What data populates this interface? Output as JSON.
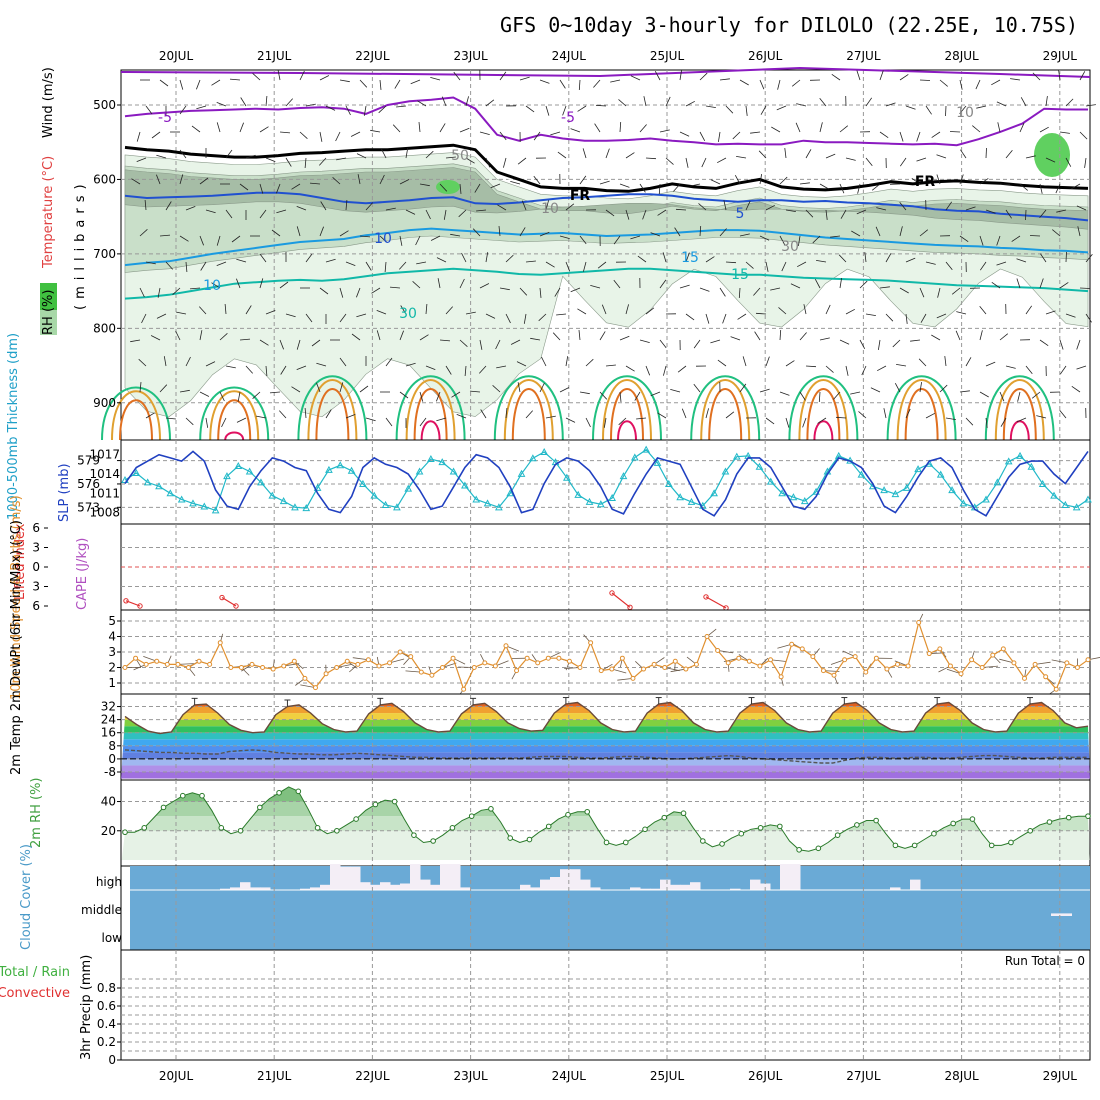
{
  "title": "GFS 0~10day 3-hourly for DILOLO (22.25E, 10.75S)",
  "run_total": "Run Total = 0",
  "colors": {
    "rh_light": "#e8f4e8",
    "rh_mid": "#c9dfc9",
    "rh_dark": "#a6bda6",
    "rh_green": "#60d060",
    "temp_purple": "#8a1ac0",
    "temp_blue": "#2050d0",
    "temp_lightblue": "#1a9ae0",
    "temp_teal": "#10b8a8",
    "temp_green": "#20c080",
    "temp_orange": "#e0a030",
    "temp_darkorange": "#e07020",
    "temp_red": "#e01060",
    "frz": "#000000",
    "thickness": "#20b8c8",
    "slp": "#2040c0",
    "lifted": "#e03030",
    "cape": "#b050c0",
    "wind": "#e09030",
    "rh2m": "#40a040",
    "cloud": "#6aaad6",
    "grid": "#999999"
  },
  "chart_data": [
    {
      "panel": "upper-air",
      "type": "contour",
      "ylabel_parts": [
        "RH (%)",
        "Temperature (°C)",
        "Wind (m/s)"
      ],
      "ylabel_units": "(millibars)",
      "y_ticks": [
        500,
        600,
        700,
        800,
        900
      ],
      "ylim": [
        450,
        950
      ],
      "date_labels": [
        "20JUL",
        "21JUL",
        "22JUL",
        "23JUL",
        "24JUL",
        "25JUL",
        "26JUL",
        "27JUL",
        "28JUL",
        "29JUL"
      ],
      "contour_labels": [
        "-5",
        "-5",
        "FR",
        "FR",
        "5",
        "10",
        "10",
        "15",
        "15",
        "30",
        "50",
        "10",
        "10",
        "30"
      ],
      "levels_c": [
        -5,
        0,
        5,
        10,
        15
      ],
      "isotherms_hpa": {
        "minus5": [
          515,
          512,
          510,
          508,
          507,
          506,
          505,
          506,
          504,
          503,
          505,
          512,
          500,
          495,
          493,
          490,
          505,
          540,
          548,
          540,
          545,
          548,
          548,
          547,
          545,
          548,
          550,
          553,
          552,
          553,
          553,
          548,
          550,
          550,
          551,
          552,
          553,
          552,
          554,
          546,
          536,
          525,
          505,
          506,
          506
        ],
        "zero": [
          557,
          560,
          562,
          566,
          568,
          570,
          570,
          568,
          565,
          564,
          562,
          560,
          560,
          558,
          556,
          554,
          560,
          590,
          600,
          610,
          612,
          612,
          615,
          616,
          612,
          606,
          610,
          612,
          605,
          600,
          610,
          613,
          614,
          612,
          608,
          603,
          606,
          603,
          602,
          604,
          605,
          608,
          610,
          611,
          612
        ],
        "five": [
          622,
          625,
          624,
          623,
          622,
          620,
          618,
          618,
          620,
          625,
          630,
          632,
          630,
          628,
          625,
          624,
          632,
          633,
          631,
          628,
          625,
          624,
          622,
          620,
          620,
          622,
          626,
          628,
          630,
          628,
          628,
          630,
          629,
          631,
          632,
          634,
          636,
          640,
          642,
          643,
          646,
          648,
          650,
          652,
          655
        ],
        "ten": [
          715,
          712,
          710,
          705,
          700,
          696,
          692,
          688,
          684,
          682,
          680,
          675,
          672,
          668,
          666,
          668,
          670,
          672,
          674,
          673,
          672,
          674,
          676,
          675,
          674,
          672,
          670,
          668,
          668,
          669,
          672,
          675,
          678,
          680,
          682,
          684,
          686,
          688,
          689,
          690,
          692,
          693,
          695,
          696,
          698
        ],
        "fifteen": [
          760,
          758,
          755,
          750,
          745,
          740,
          738,
          736,
          735,
          736,
          734,
          730,
          726,
          724,
          722,
          720,
          722,
          724,
          727,
          728,
          726,
          724,
          722,
          720,
          720,
          722,
          724,
          726,
          728,
          728,
          730,
          732,
          733,
          734,
          735,
          736,
          738,
          740,
          742,
          743,
          744,
          745,
          746,
          748,
          750
        ]
      }
    },
    {
      "panel": "thickness-slp",
      "type": "line",
      "ylabel": "1000-500mb Thickness (dm)",
      "ylabel_right": "SLP (mb)",
      "left_ticks": [
        573,
        576,
        579
      ],
      "right_ticks": [
        1008,
        1011,
        1014,
        1017
      ],
      "series": [
        {
          "name": "1000-500mb Thickness (dm)",
          "values": [
            576.5,
            577.4,
            576.2,
            575.7,
            574.8,
            574.0,
            573.5,
            573.1,
            572.6,
            577.0,
            578.3,
            577.6,
            576.2,
            574.5,
            573.8,
            573.0,
            572.9,
            575.5,
            577.8,
            578.4,
            577.7,
            576.0,
            574.5,
            573.3,
            573.0,
            575.4,
            577.6,
            579.2,
            578.8,
            577.6,
            575.8,
            574.0,
            573.5,
            573.0,
            574.8,
            577.3,
            579.3,
            580.1,
            578.8,
            576.8,
            574.6,
            573.7,
            573.4,
            574.2,
            577.0,
            579.4,
            580.4,
            578.7,
            576.0,
            574.3,
            573.7,
            573.2,
            574.8,
            577.6,
            579.5,
            579.6,
            578.2,
            576.3,
            574.8,
            574.3,
            573.8,
            575.0,
            577.6,
            579.6,
            579.0,
            577.2,
            575.7,
            575.2,
            574.7,
            575.5,
            577.9,
            578.6,
            577.2,
            575.2,
            573.5,
            573.0,
            574.0,
            576.2,
            578.9,
            579.6,
            578.2,
            576.0,
            574.5,
            573.3,
            573.0,
            574.0
          ]
        },
        {
          "name": "SLP (mb)",
          "values": [
            1012.5,
            1015.0,
            1016.0,
            1017.0,
            1016.5,
            1016.0,
            1017.5,
            1016.0,
            1011.5,
            1009.0,
            1008.5,
            1012.0,
            1014.5,
            1016.5,
            1016.0,
            1015.0,
            1014.5,
            1011.0,
            1008.5,
            1008.0,
            1010.5,
            1015.0,
            1016.5,
            1015.5,
            1015.0,
            1014.0,
            1011.5,
            1008.5,
            1009.0,
            1012.0,
            1015.0,
            1017.0,
            1016.5,
            1015.0,
            1012.0,
            1008.0,
            1008.5,
            1012.5,
            1015.5,
            1016.5,
            1016.0,
            1014.5,
            1012.0,
            1008.5,
            1007.8,
            1011.0,
            1014.0,
            1016.5,
            1016.0,
            1015.5,
            1012.0,
            1008.5,
            1007.5,
            1010.0,
            1014.0,
            1016.5,
            1016.5,
            1015.0,
            1012.0,
            1009.0,
            1008.5,
            1010.5,
            1014.0,
            1016.5,
            1016.0,
            1015.0,
            1012.5,
            1009.0,
            1008.0,
            1010.5,
            1013.5,
            1016.0,
            1016.5,
            1015.0,
            1011.5,
            1008.5,
            1007.5,
            1010.5,
            1013.5,
            1015.5,
            1016.0,
            1016.0,
            1014.0,
            1012.5,
            1015.0,
            1017.5
          ]
        }
      ]
    },
    {
      "panel": "lifted-index",
      "type": "line",
      "ylabel": "Lifted Index",
      "ylabel_right": "CAPE (J/kg)",
      "left_ticks": [
        -6,
        -3,
        0,
        3,
        6
      ],
      "series": [
        {
          "name": "Lifted Index",
          "segments": [
            [
              5.2,
              6.0
            ],
            [
              4.7,
              6.0
            ],
            [
              4.0,
              6.2
            ],
            [
              4.6,
              6.3
            ]
          ]
        }
      ]
    },
    {
      "panel": "10m-wind",
      "type": "line",
      "ylabel": "10m Wind Speed & Barbs (m/s)",
      "left_ticks": [
        1,
        2,
        3,
        4,
        5
      ],
      "series": [
        {
          "name": "10m Wind Speed (m/s)",
          "values": [
            2.0,
            2.6,
            2.2,
            2.4,
            2.2,
            2.2,
            2.0,
            2.4,
            2.2,
            3.6,
            2.0,
            2.0,
            2.2,
            2.0,
            1.9,
            2.1,
            2.4,
            1.3,
            0.7,
            1.6,
            2.0,
            2.4,
            2.2,
            2.5,
            2.1,
            2.3,
            3.0,
            2.7,
            1.7,
            1.5,
            2.0,
            2.6,
            0.6,
            2.0,
            2.3,
            2.1,
            3.4,
            1.8,
            2.6,
            2.3,
            2.6,
            2.6,
            2.4,
            2.0,
            3.6,
            1.8,
            1.9,
            2.6,
            1.3,
            1.9,
            2.2,
            2.0,
            2.4,
            1.9,
            2.2,
            4.0,
            3.1,
            2.3,
            2.6,
            2.4,
            2.1,
            2.5,
            1.4,
            3.5,
            3.2,
            2.7,
            1.8,
            1.5,
            2.5,
            2.7,
            1.7,
            2.6,
            1.9,
            2.2,
            2.1,
            4.9,
            2.9,
            3.2,
            2.1,
            1.6,
            2.5,
            2.0,
            2.8,
            3.2,
            2.3,
            1.3,
            2.2,
            1.4,
            0.6,
            2.3,
            2.0,
            2.5
          ]
        }
      ]
    },
    {
      "panel": "2m-temp",
      "type": "area",
      "ylabel": "2m Temp 2m DewPt (6hr Min/Max) (°C)",
      "left_ticks": [
        -8,
        0,
        8,
        16,
        24,
        32
      ],
      "series": [
        {
          "name": "2m Temp (°C)",
          "values": [
            26.0,
            21.0,
            17.0,
            15.5,
            16.5,
            27.0,
            33.0,
            33.5,
            28.0,
            21.0,
            17.5,
            16.0,
            16.5,
            27.0,
            32.0,
            33.0,
            28.0,
            21.5,
            18.0,
            16.5,
            17.0,
            27.5,
            33.0,
            34.0,
            29.0,
            22.0,
            18.0,
            16.5,
            17.0,
            27.5,
            33.0,
            34.0,
            29.0,
            22.0,
            18.5,
            17.0,
            17.5,
            28.0,
            33.5,
            34.5,
            29.5,
            22.0,
            18.0,
            16.5,
            17.0,
            28.0,
            33.5,
            34.5,
            29.5,
            22.0,
            18.0,
            16.5,
            17.0,
            28.0,
            33.5,
            34.5,
            29.5,
            22.0,
            18.0,
            16.5,
            17.0,
            28.0,
            33.5,
            34.5,
            29.5,
            22.0,
            18.0,
            16.5,
            17.0,
            28.0,
            33.5,
            34.5,
            29.5,
            22.0,
            18.0,
            16.5,
            17.0,
            28.0,
            33.5,
            34.5,
            29.5,
            22.0,
            19.0,
            20.0
          ]
        },
        {
          "name": "2m DewPt (°C)",
          "values": [
            5.5,
            5.0,
            4.5,
            4.0,
            4.0,
            3.5,
            3.5,
            3.0,
            3.0,
            4.5,
            5.0,
            5.5,
            5.0,
            4.0,
            3.5,
            3.0,
            3.0,
            2.5,
            2.5,
            3.0,
            3.5,
            3.0,
            2.5,
            2.0,
            1.5,
            1.0,
            1.0,
            0.5,
            0.5,
            0.5,
            0.5,
            0.5,
            0.5,
            0.5,
            0.5,
            1.0,
            1.5,
            1.5,
            1.5,
            1.0,
            0.5,
            0.5,
            1.0,
            1.5,
            1.5,
            1.0,
            0.5,
            0.0,
            0.0,
            0.5,
            1.0,
            1.5,
            2.0,
            1.5,
            0.5,
            0.0,
            -0.5,
            -1.0,
            -1.5,
            -2.0,
            -2.5,
            -2.5,
            -1.0,
            0.5,
            1.0,
            1.0,
            0.5,
            0.5,
            1.0,
            1.0,
            0.5,
            0.5,
            1.0,
            1.5,
            2.0,
            2.0,
            1.5,
            1.0,
            0.5,
            0.5,
            1.0,
            1.0,
            1.0,
            1.0
          ]
        }
      ]
    },
    {
      "panel": "2m-rh",
      "type": "area",
      "ylabel": "2m RH (%)",
      "left_ticks": [
        20,
        40
      ],
      "series": [
        {
          "name": "2m RH (%)",
          "values": [
            19,
            19,
            22,
            29,
            36,
            40,
            44,
            46,
            44,
            34,
            22,
            18,
            20,
            28,
            36,
            42,
            46,
            50,
            47,
            35,
            22,
            18,
            20,
            24,
            28,
            34,
            38,
            41,
            40,
            28,
            17,
            12,
            13,
            17,
            22,
            27,
            30,
            34,
            35,
            26,
            15,
            12,
            14,
            19,
            23,
            28,
            31,
            33,
            33,
            22,
            12,
            10,
            12,
            16,
            21,
            26,
            29,
            33,
            32,
            22,
            13,
            9,
            11,
            15,
            18,
            21,
            22,
            24,
            23,
            13,
            7,
            6,
            8,
            12,
            17,
            21,
            24,
            27,
            27,
            18,
            10,
            8,
            10,
            14,
            18,
            22,
            25,
            28,
            28,
            18,
            10,
            10,
            12,
            16,
            20,
            24,
            26,
            28,
            29,
            30,
            30
          ]
        }
      ]
    },
    {
      "panel": "cloud-cover",
      "type": "bar",
      "ylabel": "Cloud Cover (%)",
      "level_labels": [
        "high",
        "middle",
        "low"
      ],
      "series": [
        {
          "name": "high",
          "values": [
            0,
            0,
            0,
            0,
            0,
            0,
            0,
            0,
            0,
            5,
            10,
            30,
            10,
            10,
            0,
            0,
            0,
            5,
            10,
            20,
            100,
            90,
            90,
            30,
            20,
            30,
            20,
            25,
            100,
            40,
            20,
            100,
            100,
            10,
            0,
            0,
            0,
            0,
            0,
            20,
            10,
            40,
            50,
            80,
            80,
            40,
            10,
            0,
            0,
            0,
            10,
            5,
            5,
            40,
            20,
            20,
            30,
            0,
            0,
            0,
            5,
            0,
            40,
            25,
            0,
            100,
            100,
            0,
            0,
            0,
            0,
            0,
            0,
            0,
            0,
            0,
            10,
            0,
            40,
            0,
            0,
            0,
            0,
            0,
            0,
            0,
            0,
            0,
            0,
            0,
            0,
            0,
            0,
            0,
            0,
            0
          ]
        },
        {
          "name": "middle",
          "values": [
            0,
            0,
            0,
            10,
            10,
            10,
            0,
            0
          ]
        }
      ]
    },
    {
      "panel": "precip",
      "type": "bar",
      "ylabel": "3hr Precip (mm)",
      "legend": [
        "Total / Rain",
        "Convective"
      ],
      "left_ticks": [
        0,
        0.2,
        0.4,
        0.6,
        0.8
      ],
      "ylim": [
        0,
        1.0
      ],
      "values": []
    }
  ]
}
